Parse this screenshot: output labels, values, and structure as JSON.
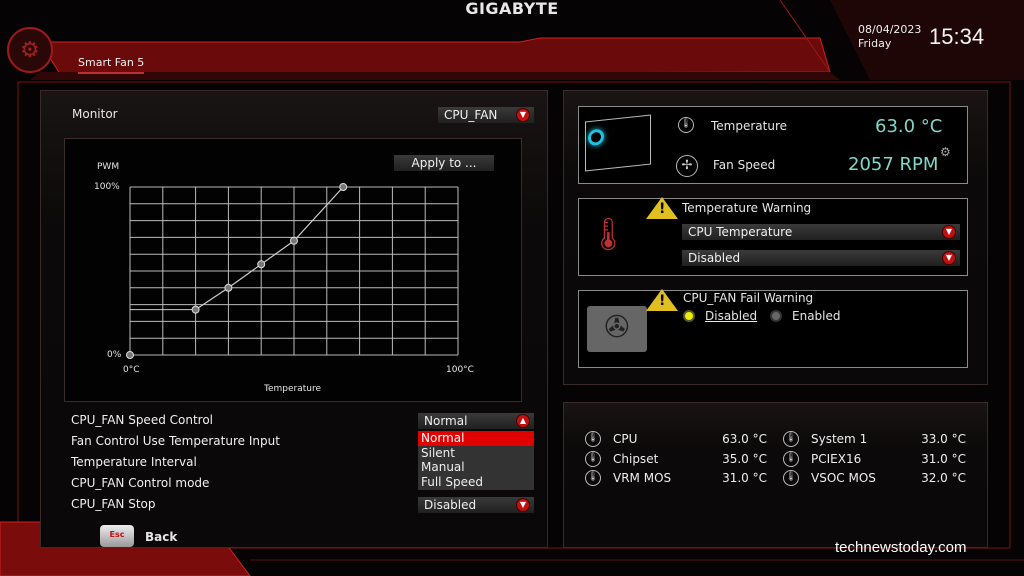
{
  "header": {
    "brand": "GIGABYTE",
    "tab": "Smart Fan 5",
    "date": "08/04/2023",
    "day": "Friday",
    "time": "15:34"
  },
  "monitor": {
    "label": "Monitor",
    "selected": "CPU_FAN"
  },
  "chart_data": {
    "type": "line",
    "ylabel": "PWM",
    "xlabel": "Temperature",
    "x_tick_labels": [
      "0°C",
      "100°C"
    ],
    "y_tick_labels": [
      "0%",
      "100%"
    ],
    "xlim": [
      0,
      100
    ],
    "ylim": [
      0,
      100
    ],
    "grid": true,
    "points": [
      {
        "x": 0,
        "y": 0
      },
      {
        "x": 20,
        "y": 27
      },
      {
        "x": 30,
        "y": 40
      },
      {
        "x": 40,
        "y": 54
      },
      {
        "x": 50,
        "y": 68
      },
      {
        "x": 65,
        "y": 100
      }
    ]
  },
  "apply_button": "Apply to ...",
  "settings": [
    {
      "label": "CPU_FAN Speed Control",
      "value": "Normal"
    },
    {
      "label": "Fan Control Use Temperature Input"
    },
    {
      "label": "Temperature Interval"
    },
    {
      "label": "CPU_FAN Control mode"
    },
    {
      "label": "CPU_FAN Stop",
      "value": "Disabled"
    }
  ],
  "speed_options": [
    "Normal",
    "Silent",
    "Manual",
    "Full Speed"
  ],
  "status": {
    "temp_label": "Temperature",
    "temp_value": "63.0 °C",
    "fan_label": "Fan Speed",
    "fan_value": "2057 RPM"
  },
  "temp_warning": {
    "title": "Temperature Warning",
    "source": "CPU Temperature",
    "value": "Disabled"
  },
  "fan_fail": {
    "title": "CPU_FAN Fail Warning",
    "options": [
      "Disabled",
      "Enabled"
    ],
    "selected": "Disabled"
  },
  "sensors": [
    {
      "name": "CPU",
      "value": "63.0 °C"
    },
    {
      "name": "System 1",
      "value": "33.0 °C"
    },
    {
      "name": "Chipset",
      "value": "35.0 °C"
    },
    {
      "name": "PCIEX16",
      "value": "31.0 °C"
    },
    {
      "name": "VRM MOS",
      "value": "31.0 °C"
    },
    {
      "name": "VSOC MOS",
      "value": "32.0 °C"
    }
  ],
  "footer": {
    "key": "Esc",
    "back": "Back"
  },
  "watermark": "technewstoday.com",
  "colors": {
    "accent": "#c01010",
    "value": "#7fd8c8",
    "warning": "#e0c020"
  }
}
